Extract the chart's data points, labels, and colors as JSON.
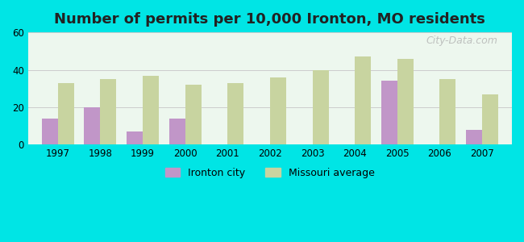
{
  "years": [
    1997,
    1998,
    1999,
    2000,
    2001,
    2002,
    2003,
    2004,
    2005,
    2006,
    2007
  ],
  "ironton": [
    14,
    20,
    7,
    14,
    0,
    0,
    0,
    0,
    34,
    0,
    8
  ],
  "missouri": [
    33,
    35,
    37,
    32,
    33,
    36,
    40,
    47,
    46,
    35,
    27
  ],
  "ironton_color": "#c196c8",
  "missouri_color": "#c8d4a0",
  "title": "Number of permits per 10,000 Ironton, MO residents",
  "title_fontsize": 13,
  "background_color": "#00e5e5",
  "plot_bg": "#edf7ee",
  "ylim": [
    0,
    60
  ],
  "yticks": [
    0,
    20,
    40,
    60
  ],
  "legend_ironton": "Ironton city",
  "legend_missouri": "Missouri average",
  "watermark": "City-Data.com"
}
